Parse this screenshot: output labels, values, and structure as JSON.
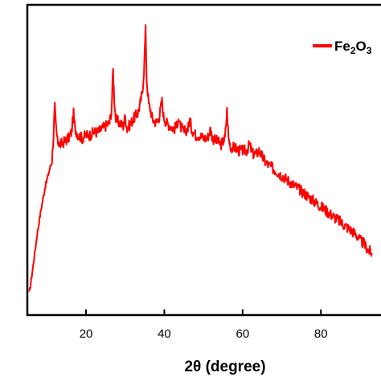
{
  "chart_data": {
    "type": "line",
    "title": "",
    "xlabel": "2θ (degree)",
    "ylabel": "",
    "xlim": [
      5,
      93
    ],
    "x_ticks": [
      20,
      40,
      60,
      80
    ],
    "y_ticks_shown": false,
    "grid": false,
    "legend_position": "top-right",
    "series": [
      {
        "name": "Fe2O3",
        "color": "#ff0000",
        "points": [
          [
            5.5,
            0.07
          ],
          [
            6.5,
            0.16
          ],
          [
            7.5,
            0.26
          ],
          [
            8.5,
            0.34
          ],
          [
            9.5,
            0.41
          ],
          [
            10.5,
            0.46
          ],
          [
            11.3,
            0.5
          ],
          [
            11.7,
            0.58
          ],
          [
            12.0,
            0.67
          ],
          [
            12.3,
            0.61
          ],
          [
            12.7,
            0.56
          ],
          [
            13.5,
            0.55
          ],
          [
            14.5,
            0.56
          ],
          [
            15.5,
            0.57
          ],
          [
            16.3,
            0.59
          ],
          [
            16.8,
            0.65
          ],
          [
            17.2,
            0.6
          ],
          [
            18.0,
            0.58
          ],
          [
            19.0,
            0.57
          ],
          [
            20.0,
            0.58
          ],
          [
            21.0,
            0.58
          ],
          [
            22.0,
            0.59
          ],
          [
            23.0,
            0.59
          ],
          [
            24.0,
            0.6
          ],
          [
            25.0,
            0.61
          ],
          [
            26.0,
            0.62
          ],
          [
            26.5,
            0.66
          ],
          [
            26.9,
            0.79
          ],
          [
            27.2,
            0.7
          ],
          [
            27.6,
            0.63
          ],
          [
            28.5,
            0.62
          ],
          [
            29.5,
            0.61
          ],
          [
            30.0,
            0.64
          ],
          [
            30.5,
            0.6
          ],
          [
            31.5,
            0.62
          ],
          [
            32.5,
            0.64
          ],
          [
            33.2,
            0.65
          ],
          [
            33.8,
            0.68
          ],
          [
            34.4,
            0.72
          ],
          [
            34.8,
            0.79
          ],
          [
            35.2,
            0.92
          ],
          [
            35.5,
            0.76
          ],
          [
            36.0,
            0.68
          ],
          [
            36.5,
            0.66
          ],
          [
            37.0,
            0.63
          ],
          [
            38.0,
            0.62
          ],
          [
            38.7,
            0.64
          ],
          [
            39.4,
            0.69
          ],
          [
            39.8,
            0.64
          ],
          [
            40.5,
            0.62
          ],
          [
            41.5,
            0.61
          ],
          [
            42.5,
            0.6
          ],
          [
            43.2,
            0.61
          ],
          [
            43.6,
            0.64
          ],
          [
            44.0,
            0.61
          ],
          [
            45.0,
            0.59
          ],
          [
            46.0,
            0.6
          ],
          [
            46.5,
            0.63
          ],
          [
            47.0,
            0.6
          ],
          [
            48.0,
            0.58
          ],
          [
            49.0,
            0.58
          ],
          [
            50.0,
            0.57
          ],
          [
            51.0,
            0.57
          ],
          [
            51.8,
            0.6
          ],
          [
            52.3,
            0.57
          ],
          [
            53.5,
            0.56
          ],
          [
            54.5,
            0.55
          ],
          [
            55.5,
            0.57
          ],
          [
            56.0,
            0.66
          ],
          [
            56.4,
            0.57
          ],
          [
            57.0,
            0.54
          ],
          [
            58.0,
            0.54
          ],
          [
            59.0,
            0.53
          ],
          [
            60.0,
            0.53
          ],
          [
            61.0,
            0.53
          ],
          [
            61.8,
            0.55
          ],
          [
            62.5,
            0.52
          ],
          [
            63.5,
            0.52
          ],
          [
            64.2,
            0.53
          ],
          [
            65.0,
            0.51
          ],
          [
            66.0,
            0.49
          ],
          [
            67.0,
            0.48
          ],
          [
            68.0,
            0.47
          ],
          [
            69.0,
            0.46
          ],
          [
            70.0,
            0.45
          ],
          [
            71.0,
            0.44
          ],
          [
            72.0,
            0.43
          ],
          [
            73.0,
            0.42
          ],
          [
            74.0,
            0.41
          ],
          [
            75.0,
            0.4
          ],
          [
            76.0,
            0.39
          ],
          [
            77.0,
            0.38
          ],
          [
            78.0,
            0.37
          ],
          [
            79.0,
            0.36
          ],
          [
            80.0,
            0.35
          ],
          [
            81.0,
            0.34
          ],
          [
            82.0,
            0.33
          ],
          [
            83.0,
            0.32
          ],
          [
            84.0,
            0.31
          ],
          [
            85.0,
            0.3
          ],
          [
            86.0,
            0.29
          ],
          [
            87.0,
            0.28
          ],
          [
            88.0,
            0.27
          ],
          [
            89.0,
            0.26
          ],
          [
            90.0,
            0.24
          ],
          [
            91.0,
            0.23
          ],
          [
            92.0,
            0.21
          ],
          [
            93.0,
            0.2
          ]
        ]
      }
    ]
  }
}
